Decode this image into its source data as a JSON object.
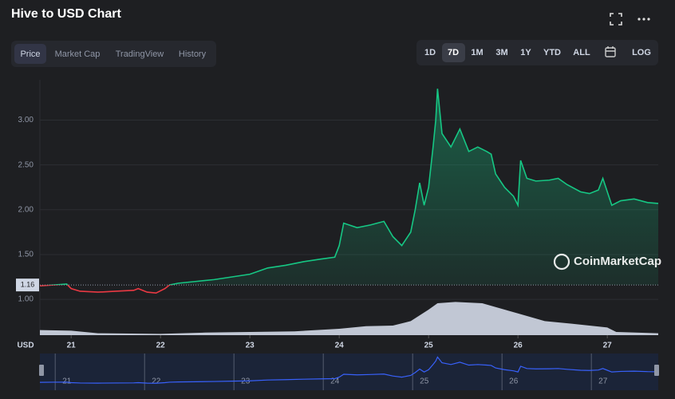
{
  "header": {
    "title": "Hive to USD Chart"
  },
  "tabs": {
    "items": [
      "Price",
      "Market Cap",
      "TradingView",
      "History"
    ],
    "active": 0
  },
  "ranges": {
    "items": [
      "1D",
      "7D",
      "1M",
      "3M",
      "1Y",
      "YTD",
      "ALL",
      "LOG"
    ],
    "active": 1
  },
  "chart_data": {
    "type": "line",
    "currency": "USD",
    "watermark": "CoinMarketCap",
    "baseline": 1.16,
    "xlim": [
      20.65,
      27.57
    ],
    "xticks": [
      21,
      22,
      23,
      24,
      25,
      26,
      27
    ],
    "ylim": [
      0.6,
      3.45
    ],
    "yticks": [
      {
        "value": 1,
        "label": "1.00"
      },
      {
        "value": 1.5,
        "label": "1.50"
      },
      {
        "value": 2,
        "label": "2.00"
      },
      {
        "value": 2.5,
        "label": "2.50"
      },
      {
        "value": 3,
        "label": "3.00"
      }
    ],
    "grid": true,
    "series": [
      {
        "color": "#16c784",
        "down_color": "#ea3943",
        "x": [
          20.65,
          20.8,
          20.95,
          21.0,
          21.1,
          21.3,
          21.5,
          21.7,
          21.75,
          21.85,
          21.95,
          22.05,
          22.1,
          22.2,
          22.4,
          22.6,
          22.8,
          23.0,
          23.2,
          23.4,
          23.6,
          23.8,
          23.95,
          24.0,
          24.05,
          24.2,
          24.35,
          24.5,
          24.6,
          24.7,
          24.8,
          24.85,
          24.9,
          24.95,
          25.0,
          25.05,
          25.08,
          25.1,
          25.15,
          25.25,
          25.35,
          25.45,
          25.55,
          25.65,
          25.7,
          25.75,
          25.85,
          25.95,
          26.0,
          26.03,
          26.1,
          26.2,
          26.35,
          26.45,
          26.55,
          26.7,
          26.8,
          26.9,
          26.95,
          27.05,
          27.15,
          27.3,
          27.45,
          27.57
        ],
        "values": [
          1.15,
          1.16,
          1.17,
          1.12,
          1.09,
          1.08,
          1.09,
          1.1,
          1.12,
          1.08,
          1.07,
          1.12,
          1.16,
          1.18,
          1.2,
          1.22,
          1.25,
          1.28,
          1.35,
          1.38,
          1.42,
          1.45,
          1.47,
          1.6,
          1.85,
          1.8,
          1.83,
          1.87,
          1.7,
          1.6,
          1.75,
          2.0,
          2.3,
          2.05,
          2.25,
          2.7,
          3.0,
          3.35,
          2.85,
          2.7,
          2.9,
          2.65,
          2.7,
          2.65,
          2.62,
          2.4,
          2.25,
          2.15,
          2.05,
          2.55,
          2.35,
          2.32,
          2.33,
          2.35,
          2.28,
          2.2,
          2.18,
          2.22,
          2.35,
          2.05,
          2.1,
          2.12,
          2.08,
          2.07
        ]
      }
    ],
    "volume": {
      "color": "#cfd6e4",
      "ylim": [
        0,
        100
      ],
      "x": [
        20.65,
        21.0,
        21.3,
        22.0,
        22.5,
        23.0,
        23.5,
        24.0,
        24.3,
        24.6,
        24.8,
        25.0,
        25.1,
        25.3,
        25.6,
        25.8,
        26.0,
        26.3,
        26.6,
        27.0,
        27.1,
        27.57
      ],
      "values": [
        8,
        7,
        3,
        2,
        4,
        5,
        6,
        10,
        14,
        15,
        22,
        40,
        50,
        52,
        50,
        42,
        34,
        22,
        18,
        12,
        5,
        3
      ]
    }
  }
}
